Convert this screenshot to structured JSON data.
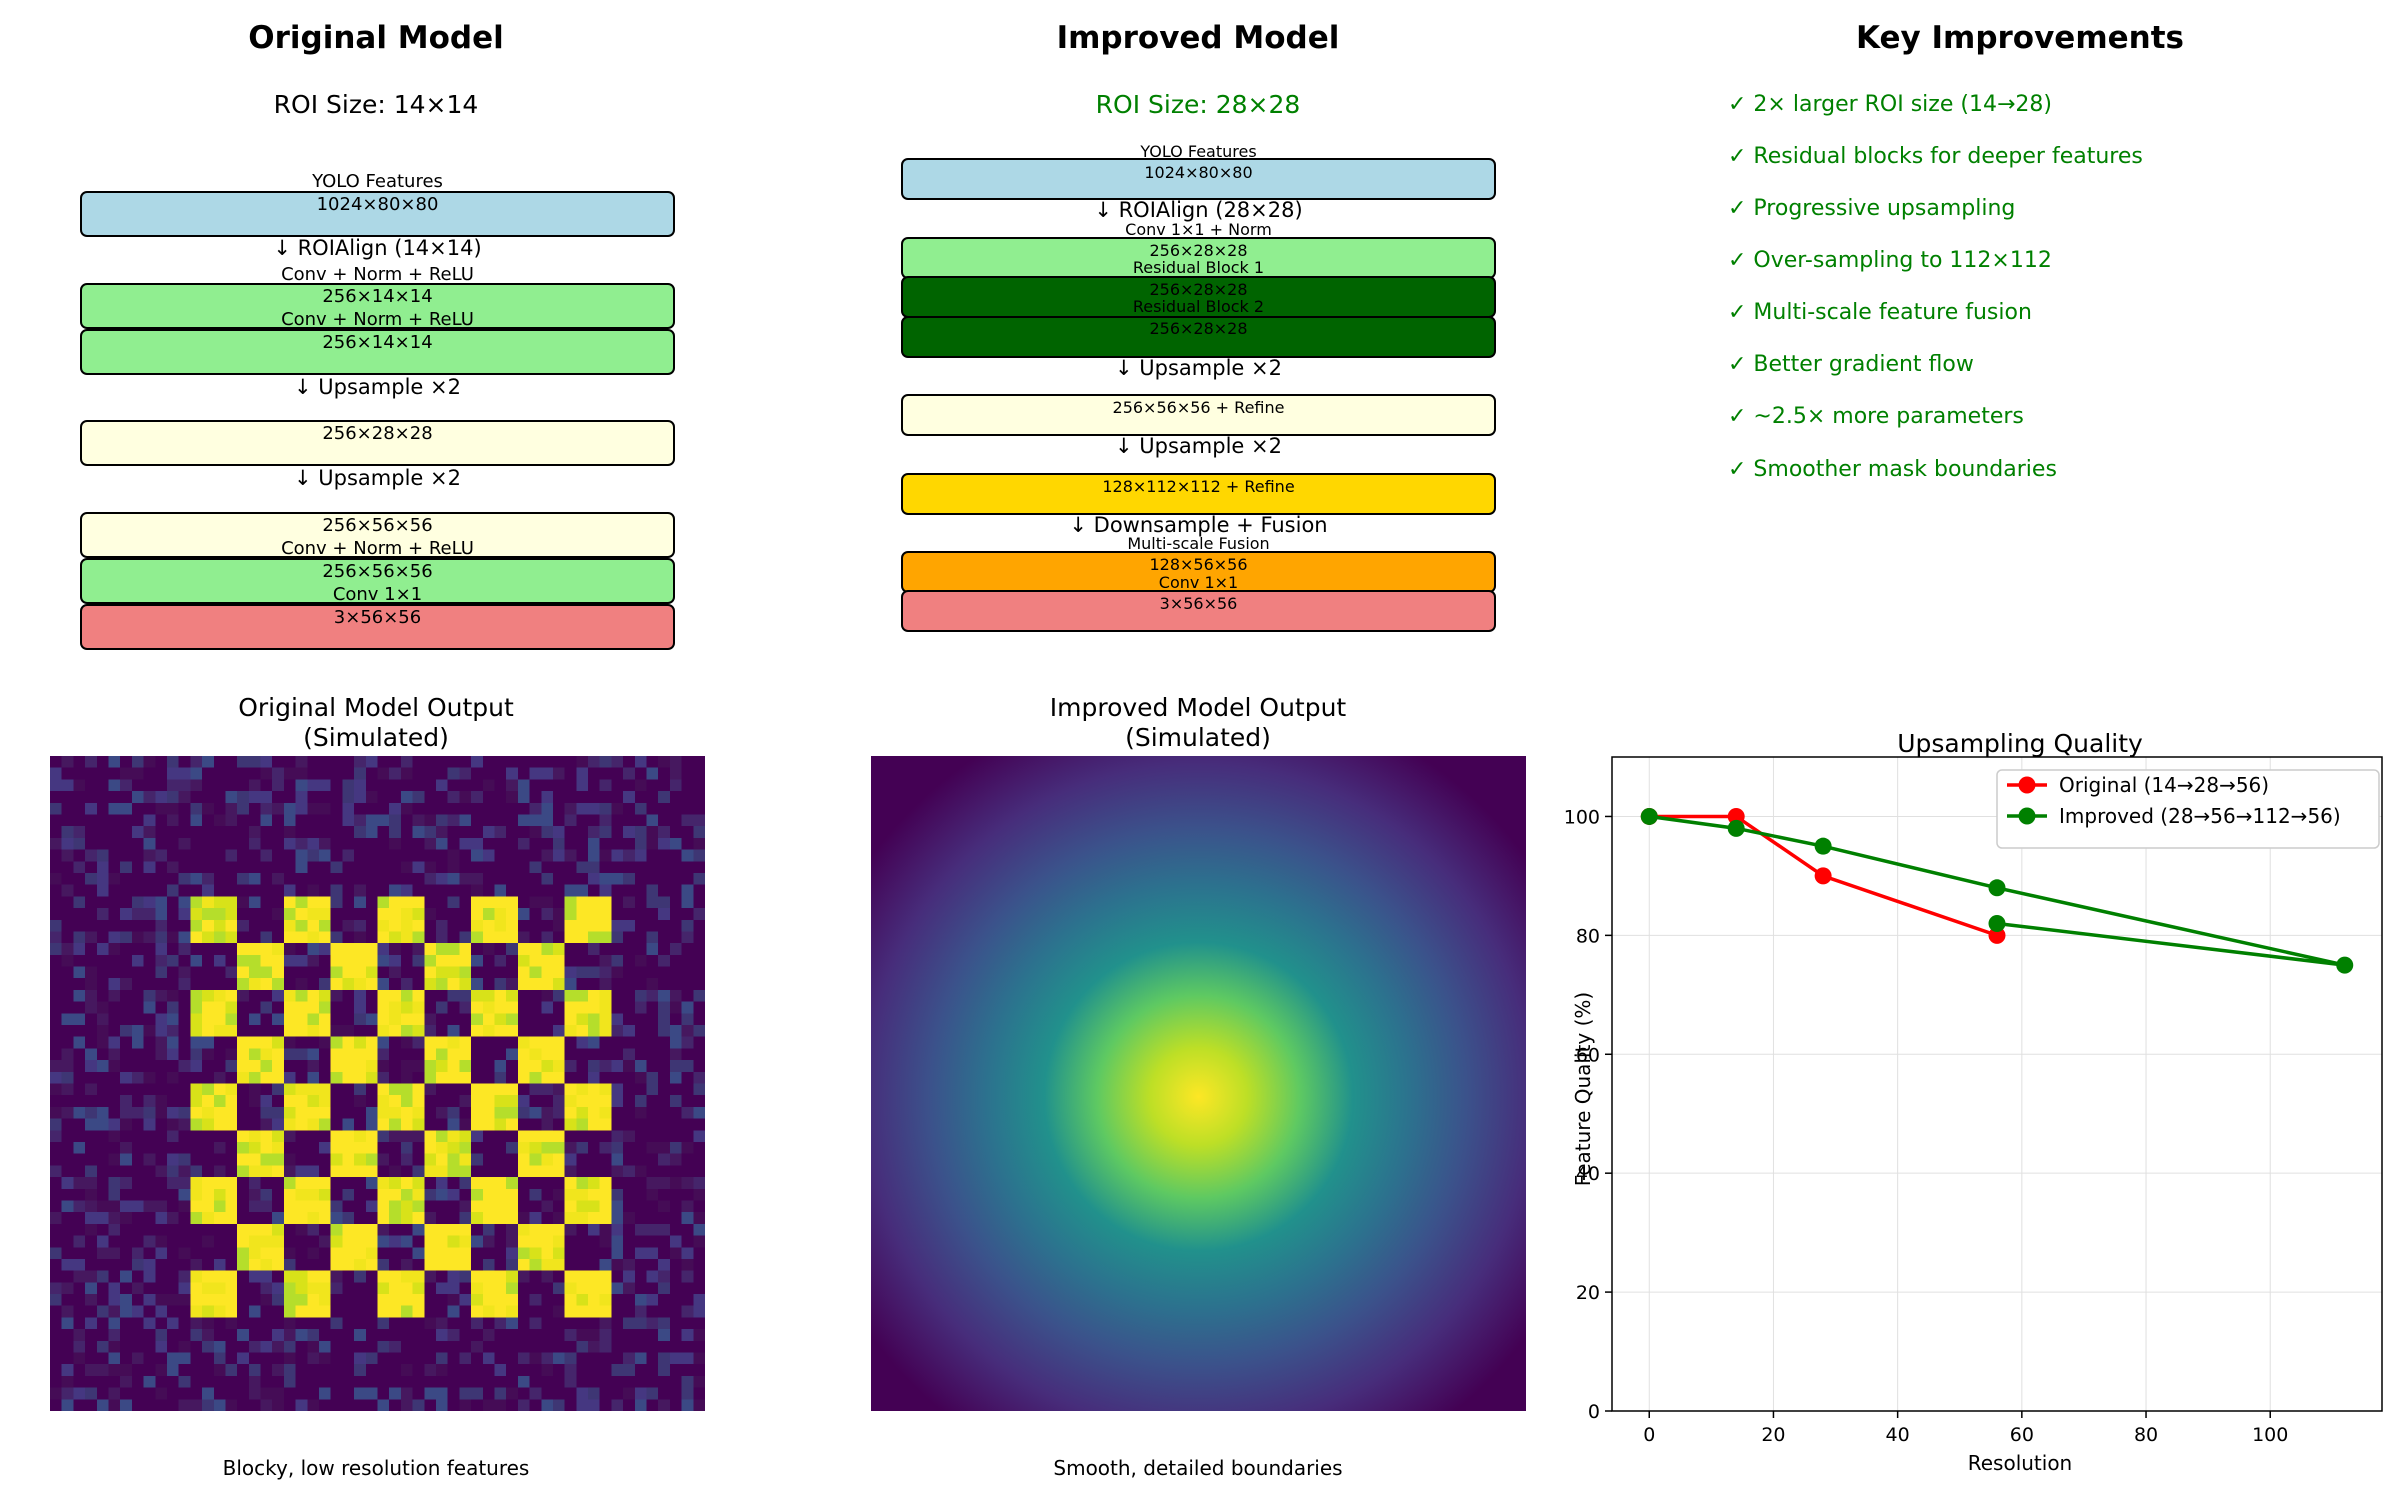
{
  "original": {
    "title": "Original Model",
    "roi": "ROI Size: 14×14",
    "blocks": [
      {
        "label": "YOLO Features",
        "dims": "1024×80×80",
        "color": "#add8e6"
      },
      {
        "label": "Conv + Norm + ReLU",
        "dims": "256×14×14",
        "color": "#90ee90"
      },
      {
        "label": "Conv + Norm + ReLU",
        "dims": "256×14×14",
        "color": "#90ee90"
      },
      {
        "label": "",
        "dims": "256×28×28",
        "color": "#ffffe0"
      },
      {
        "label": "",
        "dims": "256×56×56",
        "color": "#ffffe0"
      },
      {
        "label": "Conv + Norm + ReLU",
        "dims": "256×56×56",
        "color": "#90ee90"
      },
      {
        "label": "Conv 1×1",
        "dims": "3×56×56",
        "color": "#f08080"
      }
    ],
    "arrows": [
      "↓ ROIAlign (14×14)",
      "↓ Upsample ×2",
      "↓ Upsample ×2"
    ]
  },
  "improved": {
    "title": "Improved Model",
    "roi": "ROI Size: 28×28",
    "blocks": [
      {
        "label": "YOLO Features",
        "dims": "1024×80×80",
        "color": "#add8e6"
      },
      {
        "label": "Conv 1×1 + Norm",
        "dims": "256×28×28",
        "color": "#90ee90"
      },
      {
        "label": "Residual Block 1",
        "dims": "256×28×28",
        "color": "#006400"
      },
      {
        "label": "Residual Block 2",
        "dims": "256×28×28",
        "color": "#006400"
      },
      {
        "label": "",
        "dims": "256×56×56 + Refine",
        "color": "#ffffe0"
      },
      {
        "label": "",
        "dims": "128×112×112 + Refine",
        "color": "#ffd700"
      },
      {
        "label": "Multi-scale Fusion",
        "dims": "128×56×56",
        "color": "#ffa500"
      },
      {
        "label": "Conv 1×1",
        "dims": "3×56×56",
        "color": "#f08080"
      }
    ],
    "arrows": [
      "↓ ROIAlign (28×28)",
      "↓ Upsample ×2",
      "↓ Upsample ×2",
      "↓ Downsample + Fusion"
    ]
  },
  "key_improvements": {
    "title": "Key Improvements",
    "items": [
      "✓ 2× larger ROI size (14→28)",
      "✓ Residual blocks for deeper features",
      "✓ Progressive upsampling",
      "✓ Over-sampling to 112×112",
      "✓ Multi-scale feature fusion",
      "✓ Better gradient flow",
      "✓ ~2.5× more parameters",
      "✓ Smoother mask boundaries"
    ]
  },
  "outputs": {
    "original_title": "Original Model Output\n(Simulated)",
    "original_caption": "Blocky, low resolution features",
    "improved_title": "Improved Model Output\n(Simulated)",
    "improved_caption": "Smooth, detailed boundaries"
  },
  "chart_data": {
    "type": "line",
    "title": "Upsampling Quality",
    "xlabel": "Resolution",
    "ylabel": "Feature Quality (%)",
    "xlim": [
      -6,
      118
    ],
    "ylim": [
      0,
      110
    ],
    "xticks": [
      0,
      20,
      40,
      60,
      80,
      100
    ],
    "yticks": [
      0,
      20,
      40,
      60,
      80,
      100
    ],
    "grid": true,
    "legend": "top-right",
    "series": [
      {
        "name": "Original (14→28→56)",
        "color": "#ff0000",
        "x": [
          0,
          14,
          28,
          56
        ],
        "y": [
          100,
          100,
          90,
          80
        ]
      },
      {
        "name": "Improved (28→56→112→56)",
        "color": "#008000",
        "x": [
          0,
          14,
          28,
          56,
          112,
          56
        ],
        "y": [
          100,
          98,
          95,
          88,
          75,
          82
        ]
      }
    ]
  }
}
